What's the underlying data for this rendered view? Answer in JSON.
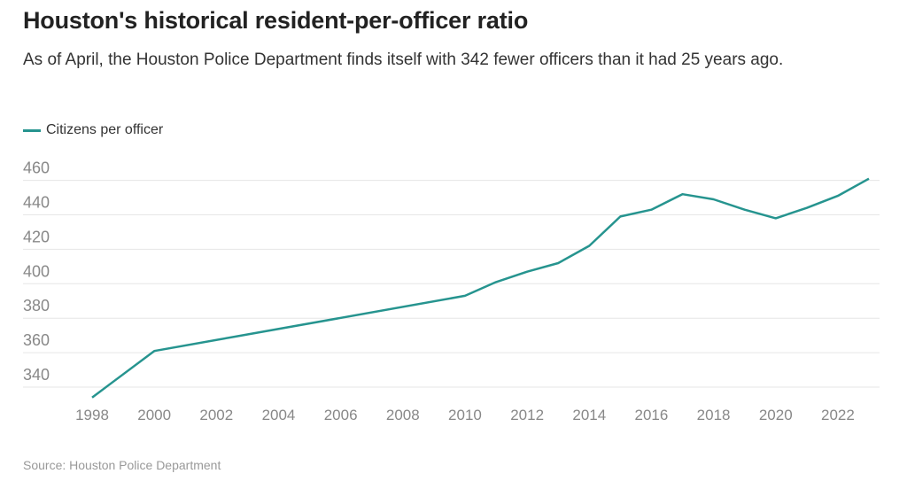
{
  "chart_data": {
    "type": "line",
    "title": "Houston's historical resident-per-officer ratio",
    "subtitle": "As of April, the Houston Police Department finds itself with 342 fewer officers than it had 25 years ago.",
    "xlabel": "",
    "ylabel": "",
    "source": "Source: Houston Police Department",
    "legend_position": "top-left",
    "grid": true,
    "ylim": [
      328,
      466
    ],
    "xlim": [
      1998,
      2023
    ],
    "y_ticks": [
      340,
      360,
      380,
      400,
      420,
      440,
      460
    ],
    "x_ticks": [
      1998,
      2000,
      2002,
      2004,
      2006,
      2008,
      2010,
      2012,
      2014,
      2016,
      2018,
      2020,
      2022
    ],
    "series": [
      {
        "name": "Citizens per officer",
        "color": "#26948f",
        "x": [
          1998,
          2000,
          2010,
          2011,
          2012,
          2013,
          2014,
          2015,
          2016,
          2017,
          2018,
          2019,
          2020,
          2021,
          2022,
          2023
        ],
        "values": [
          334,
          361,
          393,
          401,
          407,
          412,
          422,
          439,
          443,
          452,
          449,
          443,
          438,
          444,
          451,
          461
        ]
      }
    ]
  }
}
